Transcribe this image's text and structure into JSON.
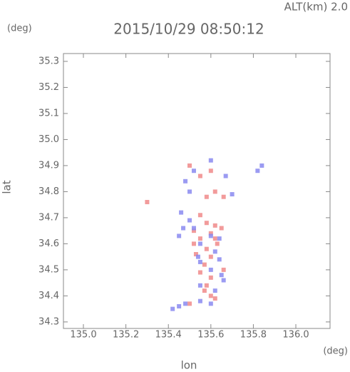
{
  "chart_data": {
    "type": "scatter",
    "title": "2015/10/29 08:50:12",
    "annotation": "ALT(km) 2.0",
    "ylabel": "lat",
    "ylabel_unit": "(deg)",
    "xlabel": "lon",
    "xlabel_unit": "(deg)",
    "xlim": [
      134.906,
      136.161
    ],
    "ylim": [
      34.275,
      35.33
    ],
    "xticks": [
      {
        "value": 135,
        "label": "135.0"
      },
      135.2,
      135.4,
      135.6,
      135.8,
      {
        "value": 136,
        "label": "136.0"
      }
    ],
    "yticks": [
      34.3,
      34.4,
      34.5,
      34.6,
      34.7,
      34.8,
      34.9,
      {
        "value": 35,
        "label": "35.0"
      },
      35.1,
      35.2,
      35.3
    ],
    "series": [
      {
        "color": "#f08a8a",
        "x": [
          135.5,
          135.55,
          135.6,
          135.62,
          135.58,
          135.66,
          135.3,
          135.55,
          135.58,
          135.62,
          135.6,
          135.55,
          135.63,
          135.58,
          135.52,
          135.6,
          135.57,
          135.55,
          135.6,
          135.58,
          135.57,
          135.6,
          135.62,
          135.5,
          135.65,
          135.62,
          135.53,
          135.66,
          135.52
        ],
        "values": [
          34.9,
          34.86,
          34.88,
          34.8,
          34.78,
          34.78,
          34.76,
          34.71,
          34.68,
          34.67,
          34.64,
          34.62,
          34.6,
          34.58,
          34.65,
          34.55,
          34.52,
          34.49,
          34.47,
          34.44,
          34.42,
          34.4,
          34.39,
          34.37,
          34.66,
          34.62,
          34.56,
          34.5,
          34.6
        ]
      },
      {
        "color": "#8a8af0",
        "x": [
          135.52,
          135.48,
          135.5,
          135.6,
          135.67,
          135.84,
          135.82,
          135.7,
          135.46,
          135.5,
          135.47,
          135.45,
          135.52,
          135.6,
          135.64,
          135.55,
          135.62,
          135.55,
          135.64,
          135.65,
          135.66,
          135.55,
          135.62,
          135.45,
          135.42,
          135.48,
          135.55,
          135.6,
          135.54,
          135.6
        ],
        "values": [
          34.88,
          34.84,
          34.8,
          34.92,
          34.86,
          34.9,
          34.88,
          34.79,
          34.72,
          34.69,
          34.66,
          34.63,
          34.66,
          34.63,
          34.62,
          34.6,
          34.57,
          34.53,
          34.54,
          34.48,
          34.46,
          34.44,
          34.42,
          34.36,
          34.35,
          34.37,
          34.38,
          34.37,
          34.55,
          34.5
        ]
      }
    ]
  }
}
